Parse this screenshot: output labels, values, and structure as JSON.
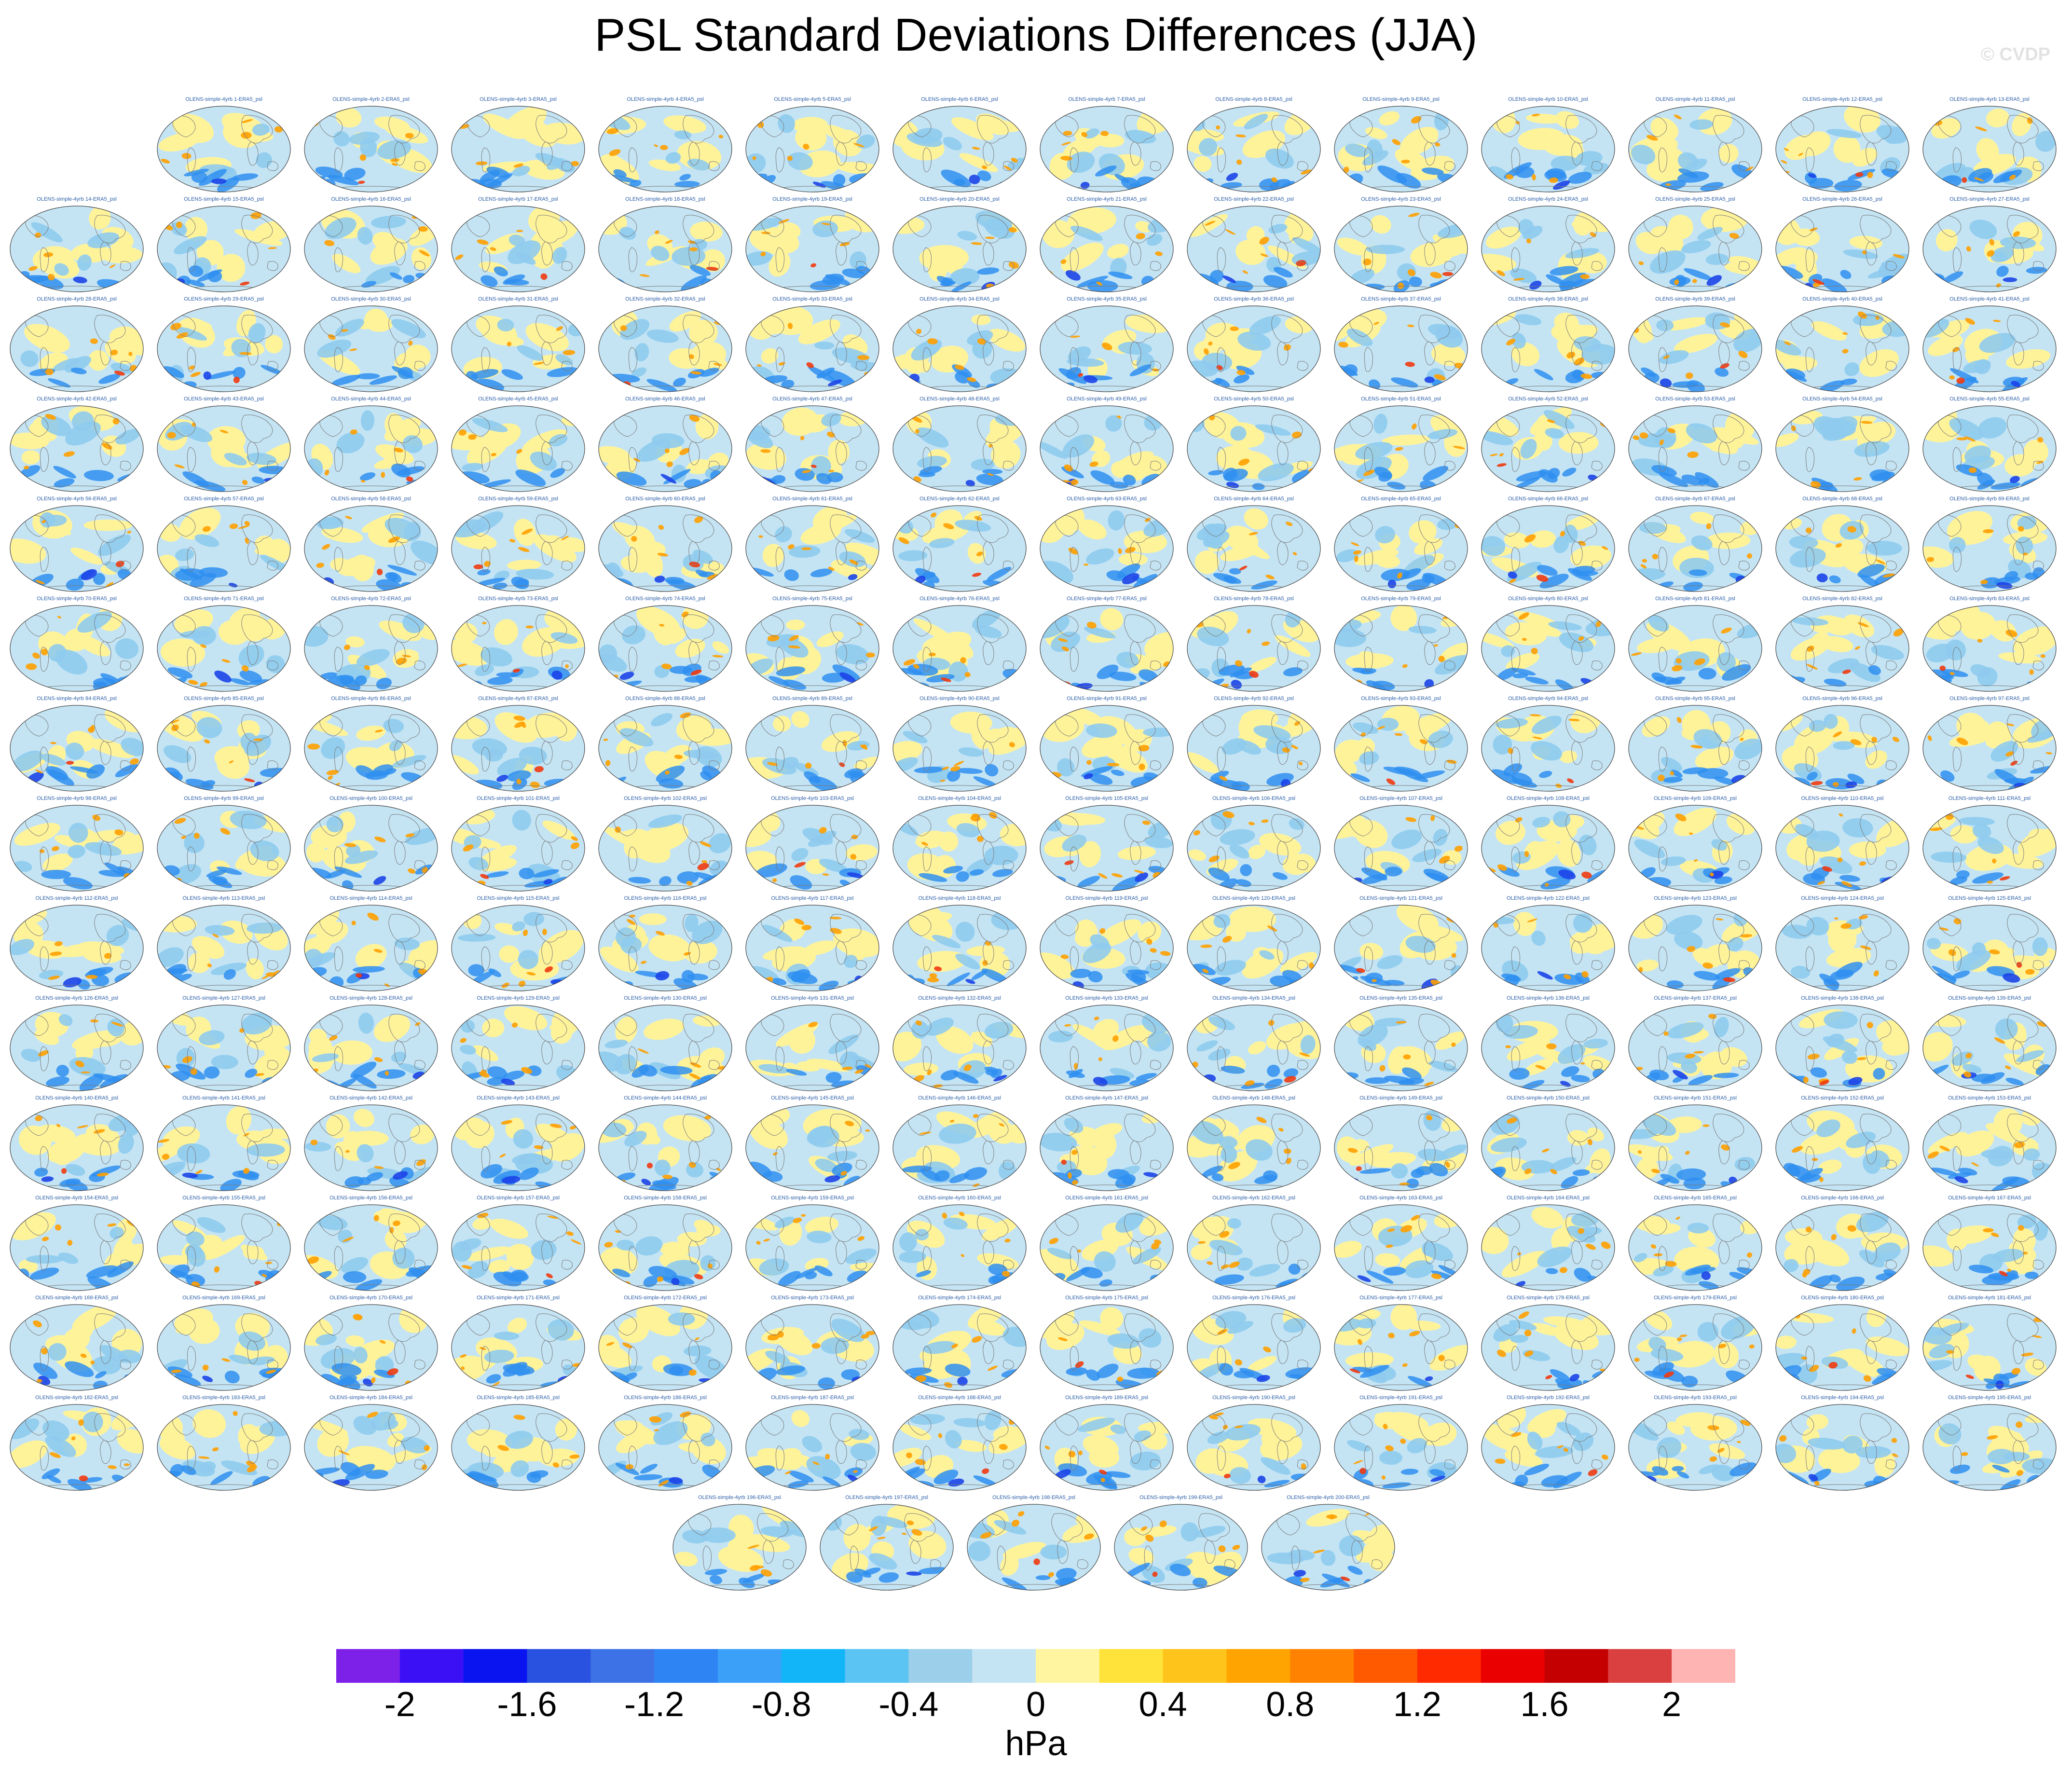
{
  "title": "PSL Standard Deviations Differences (JJA)",
  "watermark": "© CVDP",
  "panel_title_template": "OLENS-simple-4yrb {n}-ERA5_psl",
  "panel_count": 200,
  "panel_rows": [
    13,
    14,
    14,
    14,
    14,
    14,
    14,
    14,
    14,
    14,
    14,
    14,
    14,
    14,
    5
  ],
  "map_palette": {
    "ocean_light": "#c4e4f4",
    "neutral_yellow": "#fff39a",
    "light_blue": "#8fcbee",
    "blue": "#2f8ff0",
    "dark_blue": "#1c44e8",
    "orange": "#ffa000",
    "red": "#f03a10",
    "coastline": "#7a7a7a"
  },
  "colorbar": {
    "colors": [
      "#7d20e8",
      "#3b10f5",
      "#0a14f0",
      "#2a52e0",
      "#3d72e6",
      "#2f84f4",
      "#3aa0f8",
      "#12b6f8",
      "#5cc4f2",
      "#9ccfea",
      "#c4e4f4",
      "#fff5a0",
      "#ffe23a",
      "#fec41c",
      "#ffa400",
      "#ff8200",
      "#ff5a00",
      "#ff2a00",
      "#ea0000",
      "#c40000",
      "#da4040",
      "#ffb4b4"
    ],
    "tick_labels": [
      "-2",
      "-1.6",
      "-1.2",
      "-0.8",
      "-0.4",
      "0",
      "0.4",
      "0.8",
      "1.2",
      "1.6",
      "2"
    ],
    "unit": "hPa"
  }
}
